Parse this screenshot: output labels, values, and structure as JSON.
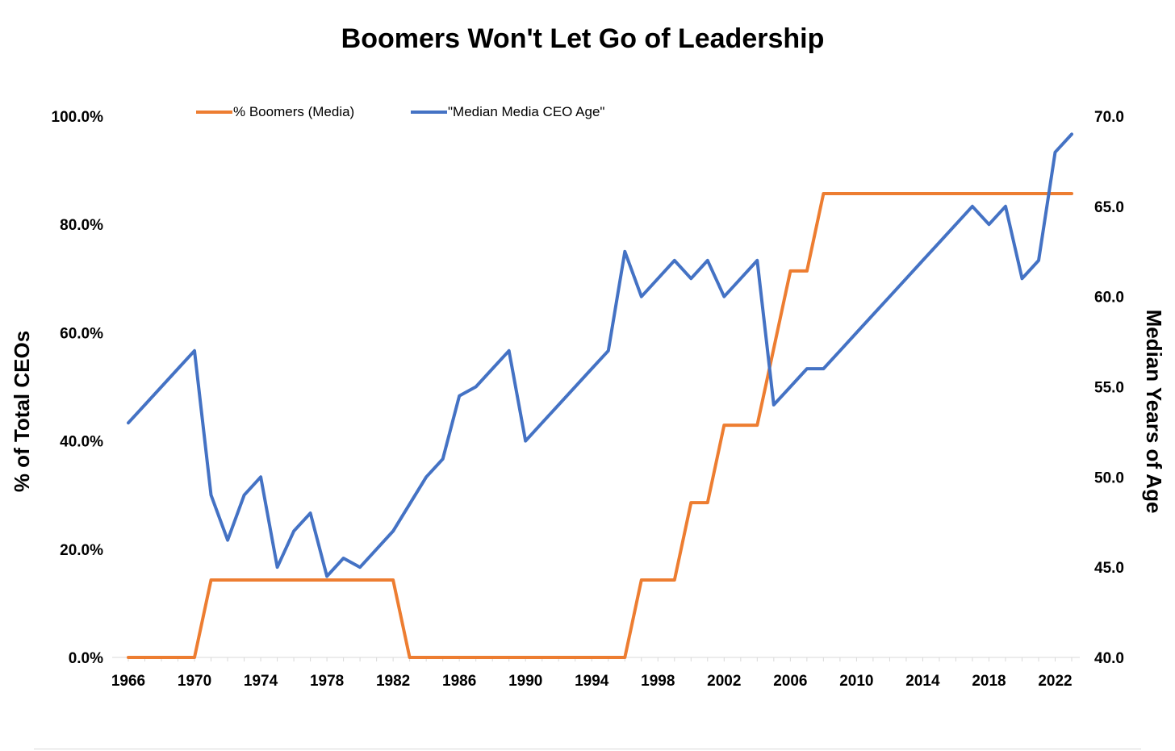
{
  "chart_data": {
    "type": "line",
    "title": "Boomers Won't Let Go of Leadership",
    "ylabel_left": "% of Total CEOs",
    "ylabel_right": "Median Years of Age",
    "x": [
      1966,
      1967,
      1968,
      1969,
      1970,
      1971,
      1972,
      1973,
      1974,
      1975,
      1976,
      1977,
      1978,
      1979,
      1980,
      1981,
      1982,
      1983,
      1984,
      1985,
      1986,
      1987,
      1988,
      1989,
      1990,
      1991,
      1992,
      1993,
      1994,
      1995,
      1996,
      1997,
      1998,
      1999,
      2000,
      2001,
      2002,
      2003,
      2004,
      2005,
      2006,
      2007,
      2008,
      2009,
      2010,
      2011,
      2012,
      2013,
      2014,
      2015,
      2016,
      2017,
      2018,
      2019,
      2020,
      2021,
      2022,
      2023
    ],
    "x_tick_labels": [
      "1966",
      "1970",
      "1974",
      "1978",
      "1982",
      "1986",
      "1990",
      "1994",
      "1998",
      "2002",
      "2006",
      "2010",
      "2014",
      "2018",
      "2022"
    ],
    "y_left": {
      "min": 0,
      "max": 100,
      "ticks": [
        "0.0%",
        "20.0%",
        "40.0%",
        "60.0%",
        "80.0%",
        "100.0%"
      ]
    },
    "y_right": {
      "min": 40,
      "max": 70,
      "ticks": [
        "40.0",
        "45.0",
        "50.0",
        "55.0",
        "60.0",
        "65.0",
        "70.0"
      ]
    },
    "series": [
      {
        "name": "% Boomers (Media)",
        "axis": "left",
        "color": "#ED7D31",
        "values": [
          0,
          0,
          0,
          0,
          0,
          14.3,
          14.3,
          14.3,
          14.3,
          14.3,
          14.3,
          14.3,
          14.3,
          14.3,
          14.3,
          14.3,
          14.3,
          0,
          0,
          0,
          0,
          0,
          0,
          0,
          0,
          0,
          0,
          0,
          0,
          0,
          0,
          14.3,
          14.3,
          14.3,
          28.6,
          28.6,
          42.9,
          42.9,
          42.9,
          57.1,
          71.4,
          71.4,
          85.7,
          85.7,
          85.7,
          85.7,
          85.7,
          85.7,
          85.7,
          85.7,
          85.7,
          85.7,
          85.7,
          85.7,
          85.7,
          85.7,
          85.7,
          85.7
        ]
      },
      {
        "name": "\"Median Media CEO Age\"",
        "axis": "right",
        "color": "#4472C4",
        "values": [
          53,
          54,
          55,
          56,
          57,
          49,
          46.5,
          49,
          50,
          45,
          47,
          48,
          44.5,
          45.5,
          45,
          46,
          47,
          48.5,
          50,
          51,
          54.5,
          55,
          56,
          57,
          52,
          53,
          54,
          55,
          56,
          57,
          62.5,
          60,
          61,
          62,
          61,
          62,
          60,
          61,
          62,
          54,
          55,
          56,
          56,
          57,
          58,
          59,
          60,
          61,
          62,
          63,
          64,
          65,
          64,
          65,
          61,
          62,
          68,
          69
        ]
      }
    ]
  }
}
